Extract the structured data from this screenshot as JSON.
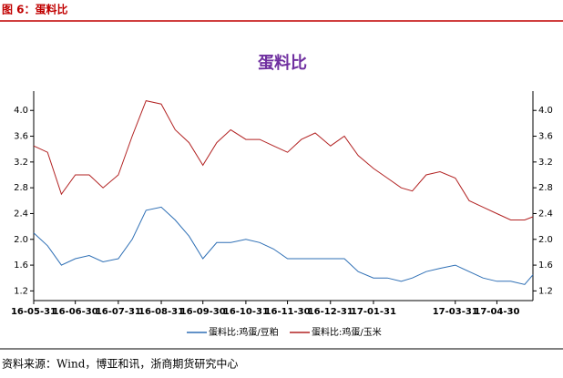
{
  "header": "图 6：蛋料比",
  "source": "资料来源：Wind，博亚和讯，浙商期货研究中心",
  "chart_data": {
    "type": "line",
    "title": "蛋料比",
    "x": [
      "16-05-31",
      "16-06-10",
      "16-06-20",
      "16-06-30",
      "16-07-10",
      "16-07-20",
      "16-07-31",
      "16-08-10",
      "16-08-20",
      "16-08-31",
      "16-09-10",
      "16-09-20",
      "16-09-30",
      "16-10-10",
      "16-10-20",
      "16-10-31",
      "16-11-10",
      "16-11-20",
      "16-11-30",
      "16-12-10",
      "16-12-20",
      "16-12-31",
      "17-01-10",
      "17-01-20",
      "17-01-31",
      "17-02-10",
      "17-02-20",
      "17-02-28",
      "17-03-10",
      "17-03-20",
      "17-03-31",
      "17-04-10",
      "17-04-20",
      "17-04-30",
      "17-05-10",
      "17-05-20",
      "17-05-26"
    ],
    "series": [
      {
        "name": "蛋料比:鸡蛋/豆粕",
        "color": "#2e6fb5",
        "values": [
          2.1,
          1.9,
          1.6,
          1.7,
          1.75,
          1.65,
          1.7,
          2.0,
          2.45,
          2.5,
          2.3,
          2.05,
          1.7,
          1.95,
          1.95,
          2.0,
          1.95,
          1.85,
          1.7,
          1.7,
          1.7,
          1.7,
          1.7,
          1.5,
          1.4,
          1.4,
          1.35,
          1.4,
          1.5,
          1.55,
          1.6,
          1.5,
          1.4,
          1.35,
          1.35,
          1.3,
          1.45
        ]
      },
      {
        "name": "蛋料比:鸡蛋/玉米",
        "color": "#b22222",
        "values": [
          3.45,
          3.35,
          2.7,
          3.0,
          3.0,
          2.8,
          3.0,
          3.6,
          4.15,
          4.1,
          3.7,
          3.5,
          3.15,
          3.5,
          3.7,
          3.55,
          3.55,
          3.45,
          3.35,
          3.55,
          3.65,
          3.45,
          3.6,
          3.3,
          3.1,
          2.95,
          2.8,
          2.75,
          3.0,
          3.05,
          2.95,
          2.6,
          2.5,
          2.4,
          2.3,
          2.3,
          2.35
        ]
      }
    ],
    "xlim": [
      "16-05-31",
      "17-05-26"
    ],
    "xticks": [
      "16-05-31",
      "16-06-30",
      "16-07-31",
      "16-08-31",
      "16-09-30",
      "16-10-31",
      "16-11-30",
      "16-12-31",
      "17-01-31",
      "17-03-31",
      "17-04-30"
    ],
    "ylim": [
      1.05,
      4.3
    ],
    "yticks": [
      {
        "value": 1.2,
        "label": "1.2"
      },
      {
        "value": 1.6,
        "label": "1.6"
      },
      {
        "value": 2.0,
        "label": "2.0"
      },
      {
        "value": 2.4,
        "label": "2.4"
      },
      {
        "value": 2.8,
        "label": "2.8"
      },
      {
        "value": 3.2,
        "label": "3.2"
      },
      {
        "value": 3.6,
        "label": "3.6"
      },
      {
        "value": 4.0,
        "label": "4.0"
      }
    ],
    "legend": "bottom"
  }
}
